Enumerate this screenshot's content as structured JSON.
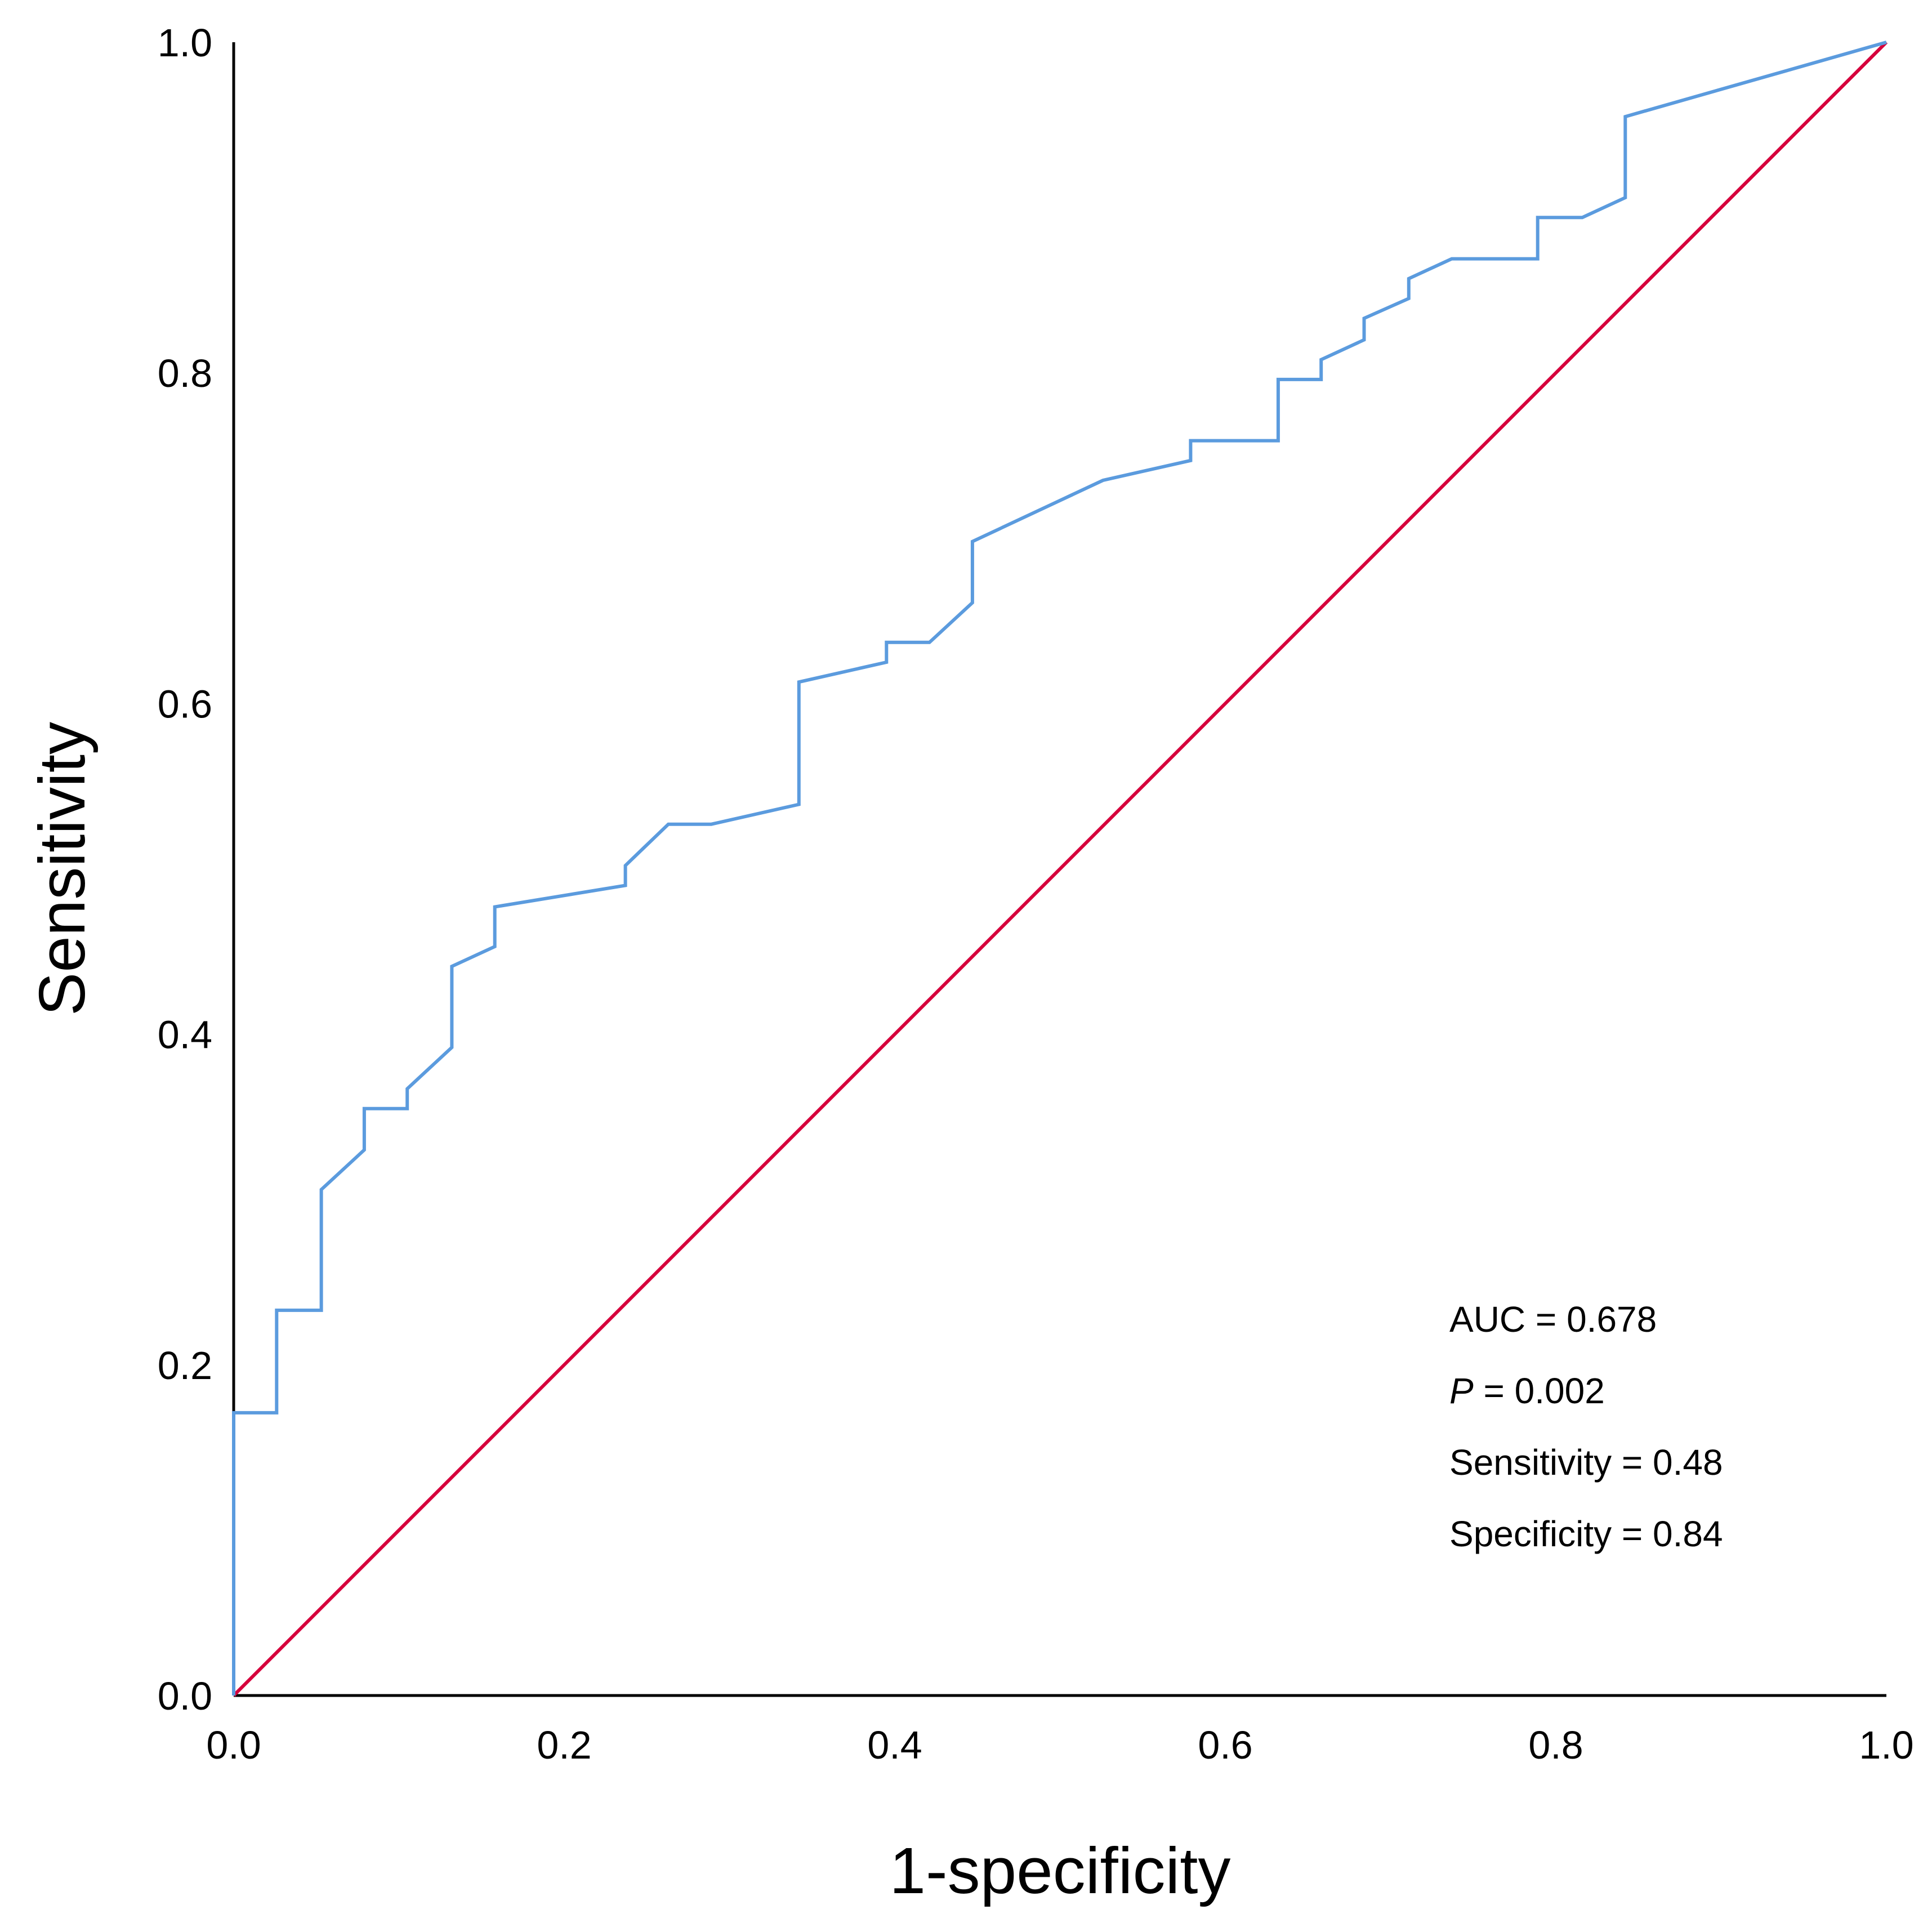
{
  "chart_data": {
    "type": "line",
    "title": "",
    "xlabel": "1-specificity",
    "ylabel": "Sensitivity",
    "xlim": [
      0,
      1
    ],
    "ylim": [
      0,
      1
    ],
    "grid": false,
    "xticks": [
      "0.0",
      "0.2",
      "0.4",
      "0.6",
      "0.8",
      "1.0"
    ],
    "yticks": [
      "0.0",
      "0.2",
      "0.4",
      "0.6",
      "0.8",
      "1.0"
    ],
    "series": [
      {
        "name": "ROC curve",
        "color": "#5b9bde",
        "x": [
          0.0,
          0.0,
          0.026,
          0.026,
          0.053,
          0.053,
          0.079,
          0.079,
          0.105,
          0.105,
          0.132,
          0.132,
          0.158,
          0.158,
          0.237,
          0.237,
          0.263,
          0.289,
          0.342,
          0.342,
          0.395,
          0.395,
          0.421,
          0.447,
          0.447,
          0.526,
          0.579,
          0.579,
          0.632,
          0.632,
          0.658,
          0.658,
          0.684,
          0.684,
          0.711,
          0.711,
          0.737,
          0.789,
          0.789,
          0.816,
          0.842,
          0.842,
          1.0
        ],
        "y": [
          0.0,
          0.171,
          0.171,
          0.233,
          0.233,
          0.306,
          0.33,
          0.355,
          0.355,
          0.367,
          0.392,
          0.441,
          0.453,
          0.477,
          0.49,
          0.502,
          0.527,
          0.527,
          0.539,
          0.613,
          0.625,
          0.637,
          0.637,
          0.661,
          0.698,
          0.735,
          0.747,
          0.759,
          0.759,
          0.796,
          0.796,
          0.808,
          0.82,
          0.833,
          0.845,
          0.857,
          0.869,
          0.869,
          0.894,
          0.894,
          0.906,
          0.955,
          1.0
        ]
      },
      {
        "name": "Reference line",
        "color": "#d6003c",
        "x": [
          0,
          1
        ],
        "y": [
          0,
          1
        ]
      }
    ],
    "annotations": {
      "auc": "AUC = 0.678",
      "p_label": "P",
      "p_value": " = 0.002",
      "sensitivity": "Sensitivity = 0.48",
      "specificity": "Specificity = 0.84"
    }
  }
}
